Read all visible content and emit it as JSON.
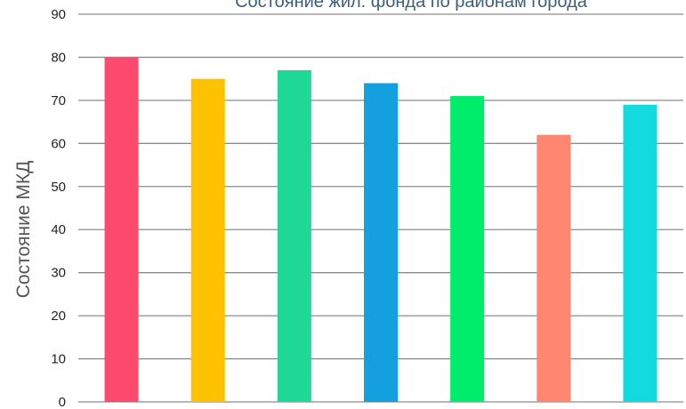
{
  "chart_data": {
    "type": "bar",
    "title": "Состояние жил. фонда по районам города",
    "xlabel": "",
    "ylabel": "Состояние МКД",
    "ylim": [
      0,
      90
    ],
    "yticks": [
      0,
      10,
      20,
      30,
      40,
      50,
      60,
      70,
      80,
      90
    ],
    "categories": [
      "",
      "",
      "",
      "",
      "",
      "",
      ""
    ],
    "values": [
      80,
      75,
      77,
      74,
      71,
      62,
      69
    ],
    "colors": [
      "#fb4a6e",
      "#fcc200",
      "#1fd896",
      "#14a0de",
      "#00ec6b",
      "#ff8772",
      "#12dbe0"
    ],
    "grid": true,
    "gridline_color": "#8c8c8c",
    "legend": "none"
  }
}
